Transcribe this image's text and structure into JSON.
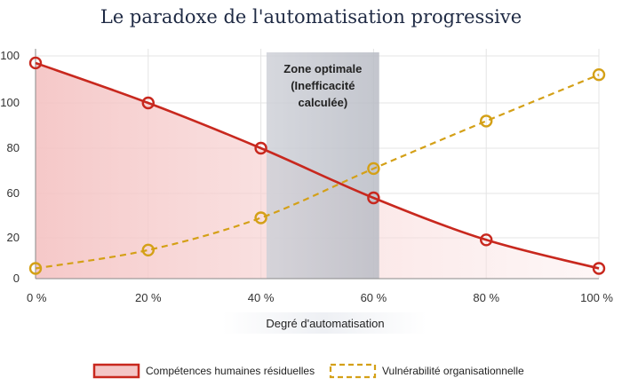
{
  "chart_data": {
    "type": "line",
    "title": "Le paradoxe de l'automatisation progressive",
    "xlabel": "Degré d'automatisation",
    "ylabel": "",
    "x": [
      0,
      20,
      40,
      60,
      80,
      100
    ],
    "x_tick_labels": [
      "0 %",
      "20 %",
      "40 %",
      "60 %",
      "80 %",
      "100 %"
    ],
    "y_tick_labels": [
      "0",
      "20",
      "40",
      "60",
      "80",
      "100",
      "100"
    ],
    "xlim": [
      0,
      100
    ],
    "series": [
      {
        "name": "Compétences humaines résiduelles",
        "values": [
          97,
          80,
          60,
          38,
          19,
          5
        ],
        "color": "#c8281e",
        "fill": "#f4c6c6",
        "style": "solid"
      },
      {
        "name": "Vulnérabilité organisationnelle",
        "values": [
          5,
          14,
          29,
          51,
          72,
          92
        ],
        "color": "#d4a017",
        "style": "dashed"
      }
    ],
    "annotation": {
      "lines": [
        "Zone optimale",
        "(Inefficacité",
        "calculée)"
      ],
      "x_start": 41,
      "x_end": 61,
      "color": "#8a8e99"
    },
    "legend_position": "bottom"
  }
}
